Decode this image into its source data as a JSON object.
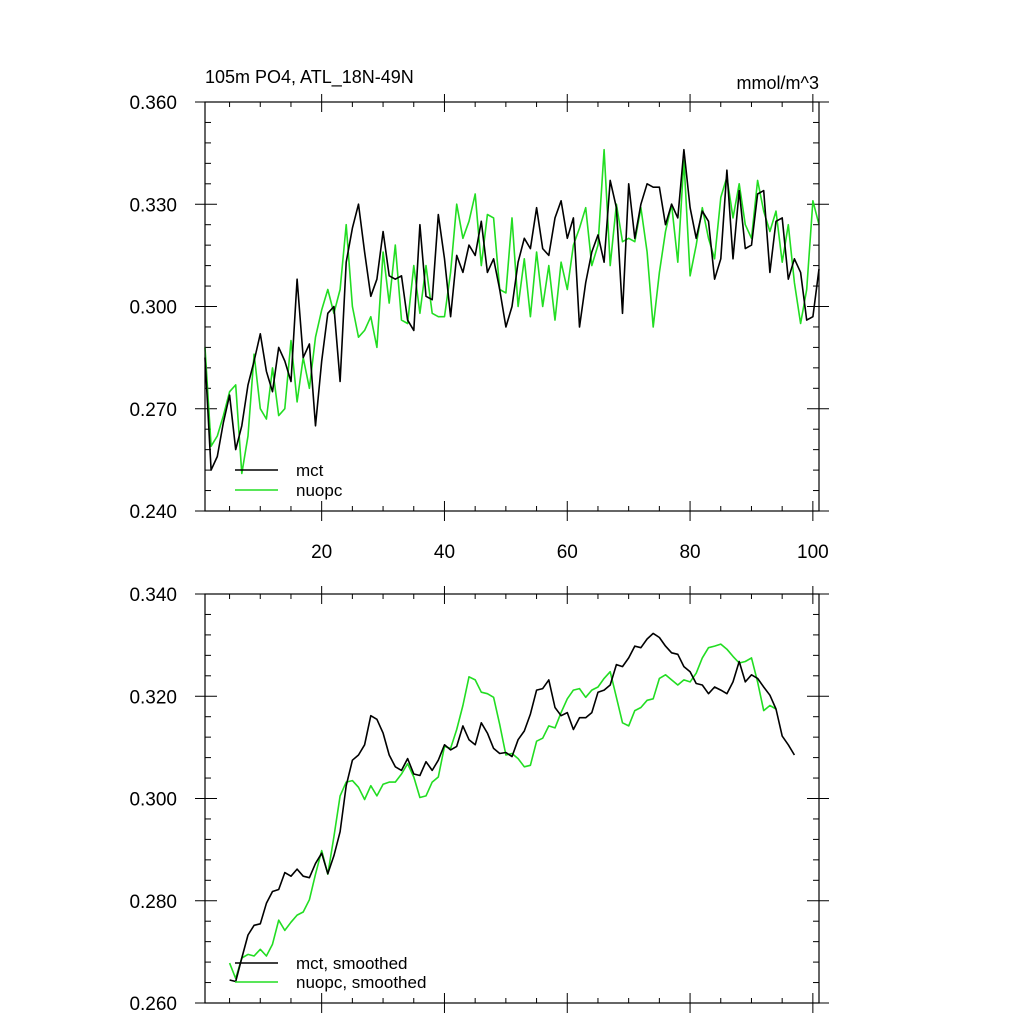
{
  "chart_data": [
    {
      "type": "line",
      "title": "105m PO4, ATL_18N-49N",
      "units": "mmol/m^3",
      "xlabel": "",
      "ylabel": "",
      "xlim": [
        1,
        101
      ],
      "ylim": [
        0.24,
        0.36
      ],
      "x_ticks": [
        20,
        40,
        60,
        80,
        100
      ],
      "y_ticks": [
        0.24,
        0.27,
        0.3,
        0.33,
        0.36
      ],
      "y_tick_labels": [
        "0.240",
        "0.270",
        "0.300",
        "0.330",
        "0.360"
      ],
      "legend": "bottom-left",
      "series": [
        {
          "name": "mct",
          "color": "#000000",
          "x_start": 1,
          "values": [
            0.285,
            0.252,
            0.256,
            0.266,
            0.274,
            0.258,
            0.265,
            0.277,
            0.284,
            0.292,
            0.281,
            0.275,
            0.288,
            0.284,
            0.278,
            0.308,
            0.285,
            0.289,
            0.265,
            0.284,
            0.298,
            0.3,
            0.278,
            0.313,
            0.323,
            0.33,
            0.316,
            0.303,
            0.308,
            0.322,
            0.309,
            0.308,
            0.309,
            0.296,
            0.293,
            0.324,
            0.303,
            0.302,
            0.327,
            0.314,
            0.297,
            0.315,
            0.31,
            0.318,
            0.315,
            0.325,
            0.31,
            0.314,
            0.305,
            0.294,
            0.3,
            0.313,
            0.32,
            0.317,
            0.329,
            0.317,
            0.315,
            0.326,
            0.331,
            0.32,
            0.326,
            0.294,
            0.307,
            0.316,
            0.321,
            0.313,
            0.337,
            0.329,
            0.298,
            0.336,
            0.32,
            0.33,
            0.336,
            0.335,
            0.335,
            0.324,
            0.33,
            0.326,
            0.346,
            0.329,
            0.32,
            0.328,
            0.325,
            0.308,
            0.314,
            0.34,
            0.314,
            0.334,
            0.317,
            0.318,
            0.333,
            0.334,
            0.31,
            0.325,
            0.326,
            0.308,
            0.314,
            0.31,
            0.296,
            0.297,
            0.311
          ]
        },
        {
          "name": "nuopc",
          "color": "#22dd22",
          "x_start": 1,
          "values": [
            0.288,
            0.259,
            0.262,
            0.268,
            0.275,
            0.277,
            0.251,
            0.262,
            0.286,
            0.27,
            0.267,
            0.282,
            0.268,
            0.27,
            0.29,
            0.272,
            0.285,
            0.276,
            0.291,
            0.299,
            0.305,
            0.298,
            0.305,
            0.324,
            0.3,
            0.291,
            0.293,
            0.297,
            0.288,
            0.316,
            0.301,
            0.318,
            0.296,
            0.295,
            0.312,
            0.298,
            0.312,
            0.298,
            0.297,
            0.297,
            0.31,
            0.33,
            0.32,
            0.325,
            0.333,
            0.312,
            0.327,
            0.326,
            0.305,
            0.304,
            0.326,
            0.3,
            0.314,
            0.297,
            0.316,
            0.3,
            0.312,
            0.296,
            0.313,
            0.305,
            0.318,
            0.323,
            0.329,
            0.312,
            0.318,
            0.346,
            0.312,
            0.33,
            0.319,
            0.32,
            0.319,
            0.329,
            0.316,
            0.294,
            0.31,
            0.322,
            0.33,
            0.313,
            0.343,
            0.309,
            0.318,
            0.329,
            0.32,
            0.314,
            0.332,
            0.338,
            0.326,
            0.336,
            0.324,
            0.32,
            0.337,
            0.328,
            0.322,
            0.328,
            0.313,
            0.324,
            0.307,
            0.295,
            0.305,
            0.331,
            0.324
          ]
        }
      ]
    },
    {
      "type": "line",
      "title": "",
      "xlabel": "",
      "ylabel": "",
      "xlim": [
        1,
        101
      ],
      "ylim": [
        0.26,
        0.34
      ],
      "x_ticks": [
        20,
        40,
        60,
        80,
        100
      ],
      "y_ticks": [
        0.26,
        0.28,
        0.3,
        0.32,
        0.34
      ],
      "y_tick_labels": [
        "0.260",
        "0.280",
        "0.300",
        "0.320",
        "0.340"
      ],
      "legend": "bottom-left",
      "series": [
        {
          "name": "mct, smoothed",
          "color": "#000000",
          "x_start": 5,
          "values": [
            0.2645,
            0.2642,
            0.2688,
            0.2733,
            0.2752,
            0.2755,
            0.2795,
            0.2818,
            0.2822,
            0.2855,
            0.2848,
            0.2862,
            0.2848,
            0.2845,
            0.2873,
            0.2893,
            0.2853,
            0.2888,
            0.2935,
            0.3025,
            0.3075,
            0.3085,
            0.3105,
            0.3162,
            0.3155,
            0.3128,
            0.3085,
            0.3062,
            0.3055,
            0.3078,
            0.3048,
            0.3045,
            0.3072,
            0.3055,
            0.3075,
            0.3105,
            0.3095,
            0.3102,
            0.3142,
            0.3115,
            0.3105,
            0.3148,
            0.3128,
            0.3098,
            0.3088,
            0.309,
            0.3082,
            0.3115,
            0.3132,
            0.3165,
            0.3212,
            0.3215,
            0.3232,
            0.3178,
            0.3162,
            0.3168,
            0.3135,
            0.3158,
            0.3158,
            0.3168,
            0.3208,
            0.3212,
            0.3222,
            0.3262,
            0.3258,
            0.3275,
            0.3298,
            0.3295,
            0.3312,
            0.3323,
            0.3315,
            0.3298,
            0.3285,
            0.3282,
            0.3258,
            0.3248,
            0.3225,
            0.3222,
            0.3205,
            0.3218,
            0.3212,
            0.3205,
            0.3228,
            0.3268,
            0.3228,
            0.3242,
            0.3235,
            0.3218,
            0.3202,
            0.3175,
            0.3122,
            0.3105,
            0.3085
          ]
        },
        {
          "name": "nuopc, smoothed",
          "color": "#22dd22",
          "x_start": 5,
          "values": [
            0.2678,
            0.2648,
            0.2688,
            0.2695,
            0.2692,
            0.2705,
            0.2692,
            0.2715,
            0.2762,
            0.2742,
            0.2758,
            0.2772,
            0.2778,
            0.2802,
            0.2852,
            0.2898,
            0.2852,
            0.2925,
            0.3005,
            0.3032,
            0.3035,
            0.3022,
            0.2998,
            0.3025,
            0.3005,
            0.3028,
            0.3032,
            0.3032,
            0.3048,
            0.3068,
            0.3042,
            0.3002,
            0.3005,
            0.3032,
            0.3042,
            0.3102,
            0.3098,
            0.3135,
            0.3182,
            0.3238,
            0.3232,
            0.3208,
            0.3205,
            0.3198,
            0.3145,
            0.3085,
            0.3088,
            0.3078,
            0.3062,
            0.3065,
            0.3112,
            0.3118,
            0.3142,
            0.3138,
            0.3168,
            0.3195,
            0.3212,
            0.3215,
            0.3198,
            0.3212,
            0.3218,
            0.3235,
            0.3248,
            0.3198,
            0.3148,
            0.3142,
            0.3172,
            0.3178,
            0.3192,
            0.3195,
            0.3235,
            0.3242,
            0.3232,
            0.3222,
            0.3232,
            0.3228,
            0.3245,
            0.3275,
            0.3295,
            0.3298,
            0.3302,
            0.3292,
            0.3278,
            0.3265,
            0.3268,
            0.3275,
            0.3228,
            0.3172,
            0.3182,
            0.3175
          ]
        }
      ]
    }
  ]
}
